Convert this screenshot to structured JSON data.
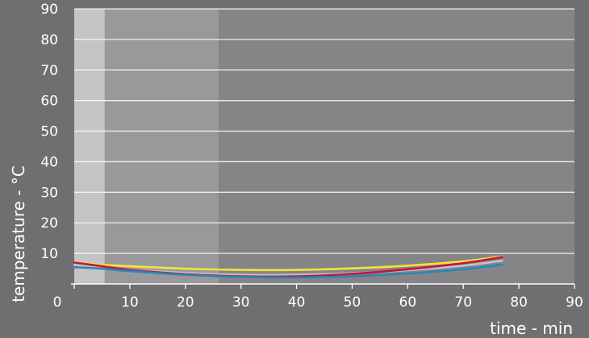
{
  "chart_data": {
    "type": "line",
    "title": "",
    "xlabel": "time - min",
    "ylabel": "temperature - °C",
    "xlim": [
      0,
      90
    ],
    "ylim": [
      0,
      90
    ],
    "x_ticks": [
      "0",
      "10",
      "20",
      "30",
      "40",
      "50",
      "60",
      "70",
      "80",
      "90"
    ],
    "y_ticks": [
      "10",
      "20",
      "30",
      "40",
      "50",
      "60",
      "70",
      "80",
      "90"
    ],
    "grid": true,
    "legend": "none",
    "background_bands": [
      {
        "x_start": 0,
        "x_end": 5.5,
        "color": "#c4c4c6"
      },
      {
        "x_start": 5.5,
        "x_end": 26,
        "color": "#99999b"
      },
      {
        "x_start": 26,
        "x_end": 90,
        "color": "#858587"
      }
    ],
    "series": [
      {
        "color": "#f5e23a",
        "points": [
          [
            0,
            7
          ],
          [
            5,
            6.3
          ],
          [
            10,
            5.8
          ],
          [
            20,
            5.0
          ],
          [
            30,
            4.6
          ],
          [
            40,
            4.6
          ],
          [
            50,
            5.1
          ],
          [
            60,
            6.0
          ],
          [
            70,
            7.4
          ],
          [
            77,
            9.0
          ]
        ]
      },
      {
        "color": "#bfc3ca",
        "points": [
          [
            0,
            6.2
          ],
          [
            5,
            5.5
          ],
          [
            10,
            4.7
          ],
          [
            20,
            3.6
          ],
          [
            30,
            3.0
          ],
          [
            40,
            3.0
          ],
          [
            50,
            3.5
          ],
          [
            60,
            4.5
          ],
          [
            70,
            6.0
          ],
          [
            77,
            7.6
          ]
        ]
      },
      {
        "color": "#c4153c",
        "points": [
          [
            0,
            7.0
          ],
          [
            5,
            5.8
          ],
          [
            10,
            4.6
          ],
          [
            20,
            3.2
          ],
          [
            30,
            2.5
          ],
          [
            40,
            2.5
          ],
          [
            50,
            3.3
          ],
          [
            60,
            4.8
          ],
          [
            70,
            6.8
          ],
          [
            77,
            8.8
          ]
        ]
      },
      {
        "color": "#2a86b5",
        "points": [
          [
            0,
            5.5
          ],
          [
            5,
            5.0
          ],
          [
            10,
            4.2
          ],
          [
            20,
            3.0
          ],
          [
            30,
            2.3
          ],
          [
            40,
            2.1
          ],
          [
            50,
            2.5
          ],
          [
            60,
            3.4
          ],
          [
            70,
            4.8
          ],
          [
            77,
            6.3
          ]
        ]
      }
    ]
  }
}
